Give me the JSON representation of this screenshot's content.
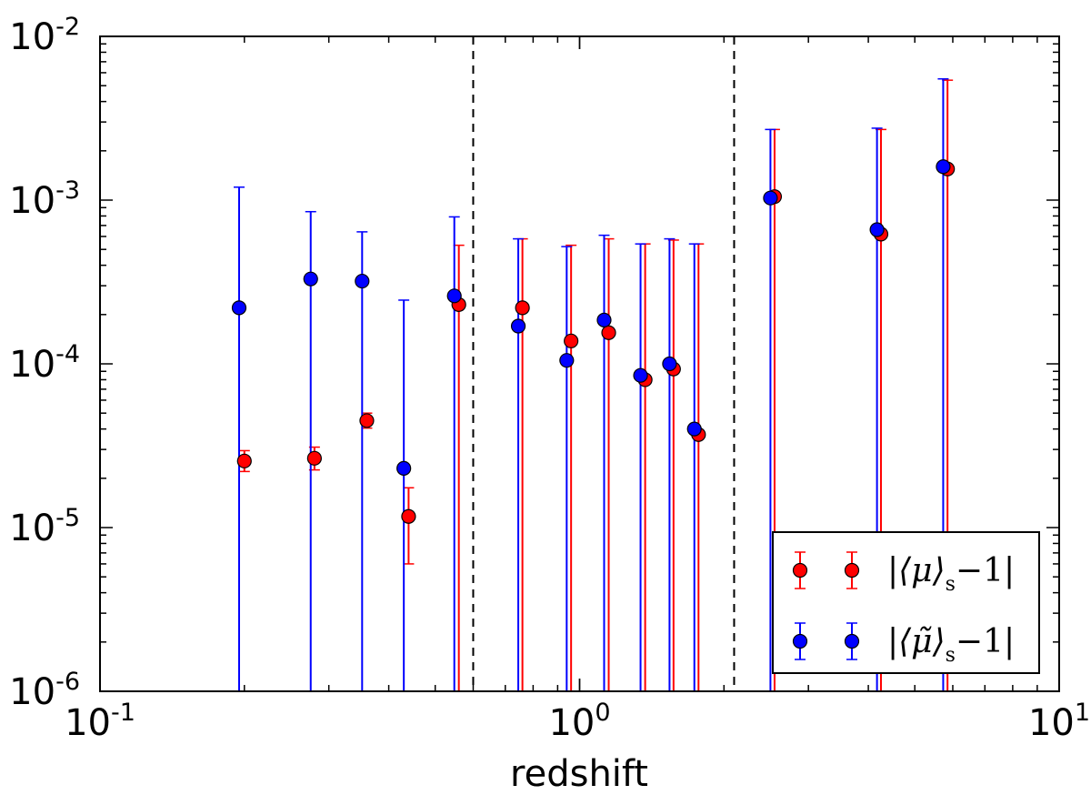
{
  "chart_data": {
    "type": "scatter",
    "title": "",
    "xlabel": "redshift",
    "ylabel": "",
    "xscale": "log",
    "yscale": "log",
    "xlim": [
      0.1,
      10
    ],
    "ylim": [
      1e-06,
      0.01
    ],
    "x_ticks": [
      {
        "value": 0.1,
        "base": "10",
        "exp": "-1"
      },
      {
        "value": 1,
        "base": "10",
        "exp": "0"
      },
      {
        "value": 10,
        "base": "10",
        "exp": "1"
      }
    ],
    "y_ticks": [
      {
        "value": 1e-06,
        "base": "10",
        "exp": "-6"
      },
      {
        "value": 1e-05,
        "base": "10",
        "exp": "-5"
      },
      {
        "value": 0.0001,
        "base": "10",
        "exp": "-4"
      },
      {
        "value": 0.001,
        "base": "10",
        "exp": "-3"
      },
      {
        "value": 0.01,
        "base": "10",
        "exp": "-2"
      }
    ],
    "vlines": [
      0.6,
      2.1
    ],
    "legend_position": "lower-right",
    "series": [
      {
        "name": "|⟨μ⟩s−1|",
        "legend_main": "|⟨μ⟩",
        "legend_sub": "s",
        "legend_tail": "−1|",
        "color": "#ff0000",
        "points": [
          {
            "x": 0.2,
            "y": 2.55e-05,
            "lo": 2.2e-05,
            "hi": 2.95e-05
          },
          {
            "x": 0.28,
            "y": 2.65e-05,
            "lo": 2.25e-05,
            "hi": 3.1e-05
          },
          {
            "x": 0.36,
            "y": 4.5e-05,
            "lo": 4.05e-05,
            "hi": 5e-05
          },
          {
            "x": 0.44,
            "y": 1.17e-05,
            "lo": 6e-06,
            "hi": 1.75e-05
          },
          {
            "x": 0.56,
            "y": 0.00023,
            "lo": 1e-06,
            "hi": 0.00053
          },
          {
            "x": 0.76,
            "y": 0.00022,
            "lo": 1e-06,
            "hi": 0.00058
          },
          {
            "x": 0.96,
            "y": 0.000138,
            "lo": 1e-06,
            "hi": 0.00053
          },
          {
            "x": 1.15,
            "y": 0.000155,
            "lo": 1e-06,
            "hi": 0.00058
          },
          {
            "x": 1.37,
            "y": 8e-05,
            "lo": 1e-06,
            "hi": 0.00054
          },
          {
            "x": 1.57,
            "y": 9.3e-05,
            "lo": 1e-06,
            "hi": 0.00057
          },
          {
            "x": 1.77,
            "y": 3.7e-05,
            "lo": 1e-06,
            "hi": 0.00054
          },
          {
            "x": 2.55,
            "y": 0.00105,
            "lo": 1e-06,
            "hi": 0.0027
          },
          {
            "x": 4.25,
            "y": 0.00062,
            "lo": 1e-06,
            "hi": 0.0027
          },
          {
            "x": 5.85,
            "y": 0.00155,
            "lo": 1e-06,
            "hi": 0.0054
          }
        ]
      },
      {
        "name": "|⟨μ̃⟩s−1|",
        "legend_main": "|⟨μ̃⟩",
        "legend_sub": "s",
        "legend_tail": "−1|",
        "color": "#0000ff",
        "points": [
          {
            "x": 0.195,
            "y": 0.00022,
            "lo": 1e-06,
            "hi": 0.0012
          },
          {
            "x": 0.275,
            "y": 0.00033,
            "lo": 1e-06,
            "hi": 0.00085
          },
          {
            "x": 0.352,
            "y": 0.00032,
            "lo": 1e-06,
            "hi": 0.00064
          },
          {
            "x": 0.43,
            "y": 2.3e-05,
            "lo": 1e-06,
            "hi": 0.000245
          },
          {
            "x": 0.548,
            "y": 0.00026,
            "lo": 1e-06,
            "hi": 0.00079
          },
          {
            "x": 0.745,
            "y": 0.00017,
            "lo": 1e-06,
            "hi": 0.00058
          },
          {
            "x": 0.94,
            "y": 0.000105,
            "lo": 1e-06,
            "hi": 0.00052
          },
          {
            "x": 1.125,
            "y": 0.000185,
            "lo": 1e-06,
            "hi": 0.00061
          },
          {
            "x": 1.34,
            "y": 8.5e-05,
            "lo": 1e-06,
            "hi": 0.00054
          },
          {
            "x": 1.54,
            "y": 0.0001,
            "lo": 1e-06,
            "hi": 0.00058
          },
          {
            "x": 1.735,
            "y": 4e-05,
            "lo": 1e-06,
            "hi": 0.00054
          },
          {
            "x": 2.5,
            "y": 0.00103,
            "lo": 1e-06,
            "hi": 0.0027
          },
          {
            "x": 4.17,
            "y": 0.00066,
            "lo": 1e-06,
            "hi": 0.00275
          },
          {
            "x": 5.73,
            "y": 0.0016,
            "lo": 1e-06,
            "hi": 0.0055
          }
        ]
      }
    ]
  }
}
